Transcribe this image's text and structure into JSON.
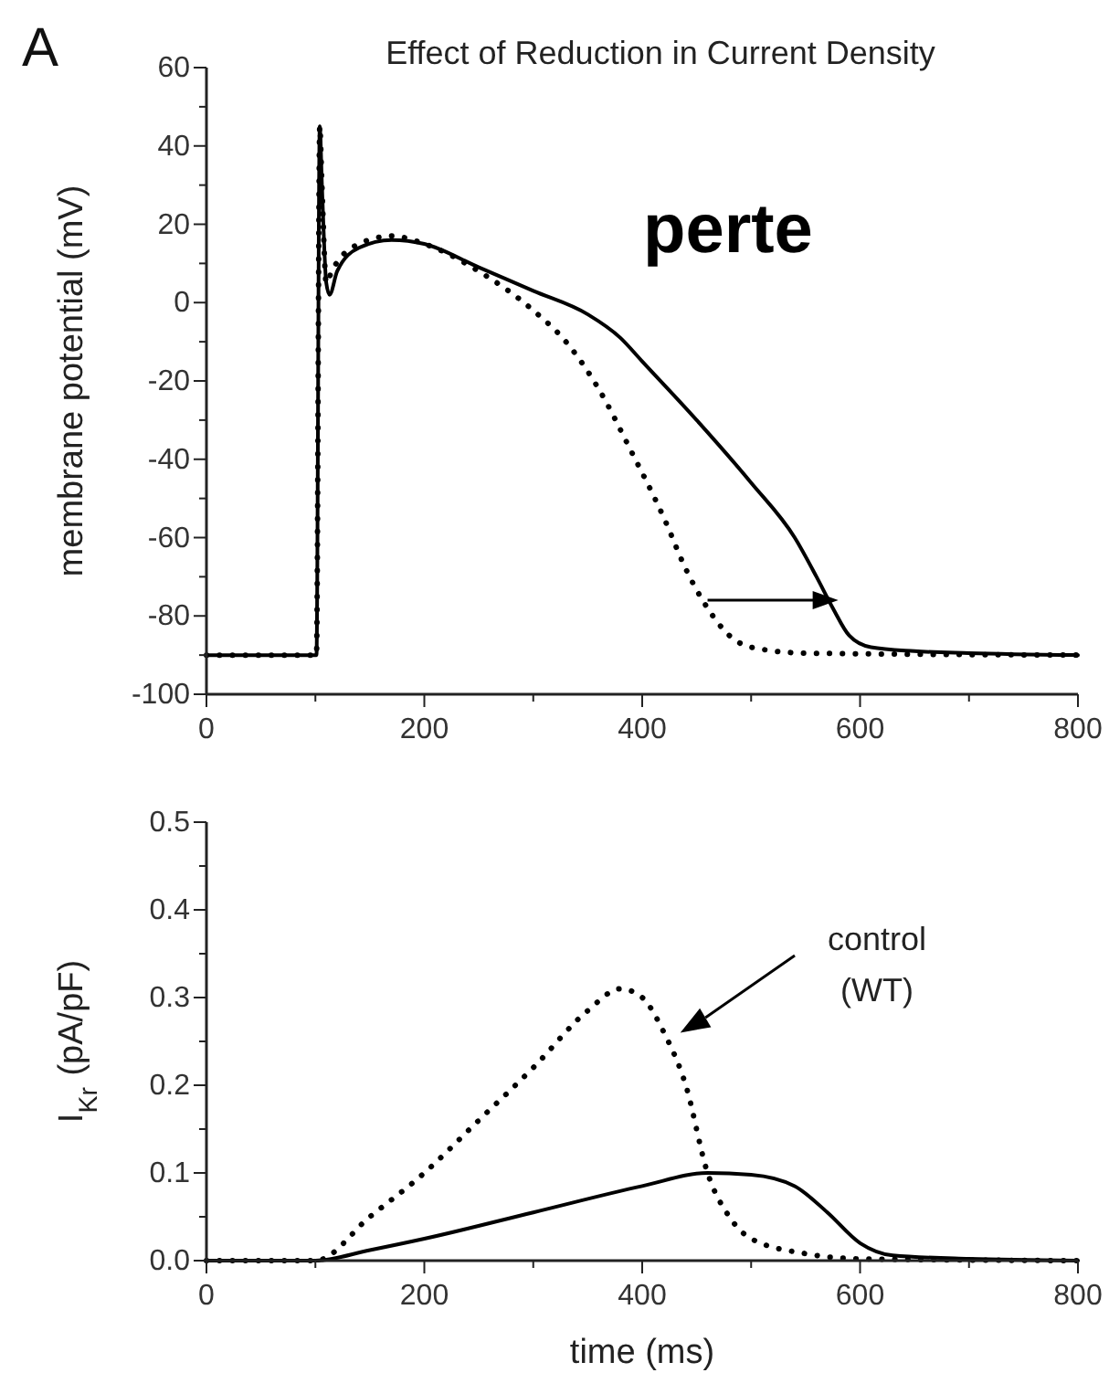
{
  "chart_data": [
    {
      "type": "line",
      "title": "Effect of Reduction in Current Density",
      "ylabel": "membrane potential (mV)",
      "annotations": [
        "A",
        "perte"
      ],
      "xlim": [
        0,
        800
      ],
      "xticks": [
        0,
        {
          "value": 100,
          "label": null
        },
        200,
        {
          "value": 300,
          "label": null
        },
        400,
        {
          "value": 500,
          "label": null
        },
        600,
        {
          "value": 700,
          "label": null
        },
        {
          "value": 800,
          "label": "800"
        }
      ],
      "ylim": [
        -100,
        60
      ],
      "yticks": [
        -100,
        {
          "value": -90,
          "label": null
        },
        -80,
        {
          "value": -70,
          "label": null
        },
        -60,
        {
          "value": -50,
          "label": null
        },
        -40,
        {
          "value": -30,
          "label": null
        },
        -20,
        {
          "value": -10,
          "label": null
        },
        0,
        {
          "value": 10,
          "label": null
        },
        20,
        {
          "value": 30,
          "label": null
        },
        40,
        {
          "value": 50,
          "label": null
        },
        60
      ],
      "grid": false,
      "series": [
        {
          "color": "#000000",
          "line_style": "solid",
          "x": [
            0,
            100,
            101,
            104,
            106,
            110,
            113,
            120,
            140,
            170,
            200,
            250,
            300,
            350,
            380,
            400,
            450,
            500,
            540,
            560,
            575,
            590,
            610,
            650,
            700,
            800
          ],
          "values": [
            -90,
            -90,
            -90,
            45,
            30,
            5,
            2,
            8,
            14,
            16,
            15,
            9,
            3,
            -3,
            -9,
            -15,
            -30,
            -46,
            -60,
            -70,
            -78,
            -85,
            -88,
            -89,
            -89.5,
            -90
          ]
        },
        {
          "color": "#000000",
          "line_style": "dotted",
          "x": [
            0,
            100,
            101,
            104,
            106,
            110,
            115,
            140,
            170,
            200,
            250,
            300,
            330,
            360,
            390,
            420,
            440,
            460,
            480,
            500,
            550,
            800
          ],
          "values": [
            -90,
            -90,
            -90,
            45,
            30,
            5,
            8,
            15,
            17,
            15,
            8,
            -2,
            -10,
            -22,
            -38,
            -55,
            -68,
            -78,
            -85,
            -88,
            -89.5,
            -90
          ]
        }
      ]
    },
    {
      "type": "line",
      "xlabel": "time (ms)",
      "ylabel": "I$_{Kr}$ (pA/pF)",
      "annotations": [
        "control (WT)"
      ],
      "xlim": [
        0,
        800
      ],
      "xticks": [
        0,
        {
          "value": 100,
          "label": null
        },
        200,
        {
          "value": 300,
          "label": null
        },
        400,
        {
          "value": 500,
          "label": null
        },
        600,
        {
          "value": 700,
          "label": null
        },
        {
          "value": 800,
          "label": "800"
        }
      ],
      "ylim": [
        0,
        0.5
      ],
      "yticks": [
        {
          "value": 0,
          "label": "0.0"
        },
        {
          "value": 0.05,
          "label": null
        },
        0.1,
        {
          "value": 0.15,
          "label": null
        },
        0.2,
        {
          "value": 0.25,
          "label": null
        },
        0.3,
        {
          "value": 0.35,
          "label": null
        },
        0.4,
        {
          "value": 0.45,
          "label": null
        },
        0.5
      ],
      "grid": false,
      "series": [
        {
          "color": "#000000",
          "line_style": "solid",
          "x": [
            0,
            100,
            150,
            200,
            300,
            400,
            460,
            500,
            540,
            570,
            600,
            630,
            700,
            800
          ],
          "values": [
            0,
            0,
            0.012,
            0.025,
            0.055,
            0.085,
            0.1,
            0.098,
            0.085,
            0.055,
            0.02,
            0.006,
            0.002,
            0
          ]
        },
        {
          "color": "#000000",
          "line_style": "dotted",
          "x": [
            0,
            100,
            150,
            200,
            250,
            300,
            350,
            380,
            400,
            420,
            440,
            460,
            480,
            500,
            550,
            600,
            800
          ],
          "values": [
            0,
            0,
            0.05,
            0.1,
            0.16,
            0.22,
            0.285,
            0.31,
            0.3,
            0.26,
            0.2,
            0.1,
            0.05,
            0.025,
            0.008,
            0.002,
            0
          ]
        }
      ]
    }
  ]
}
